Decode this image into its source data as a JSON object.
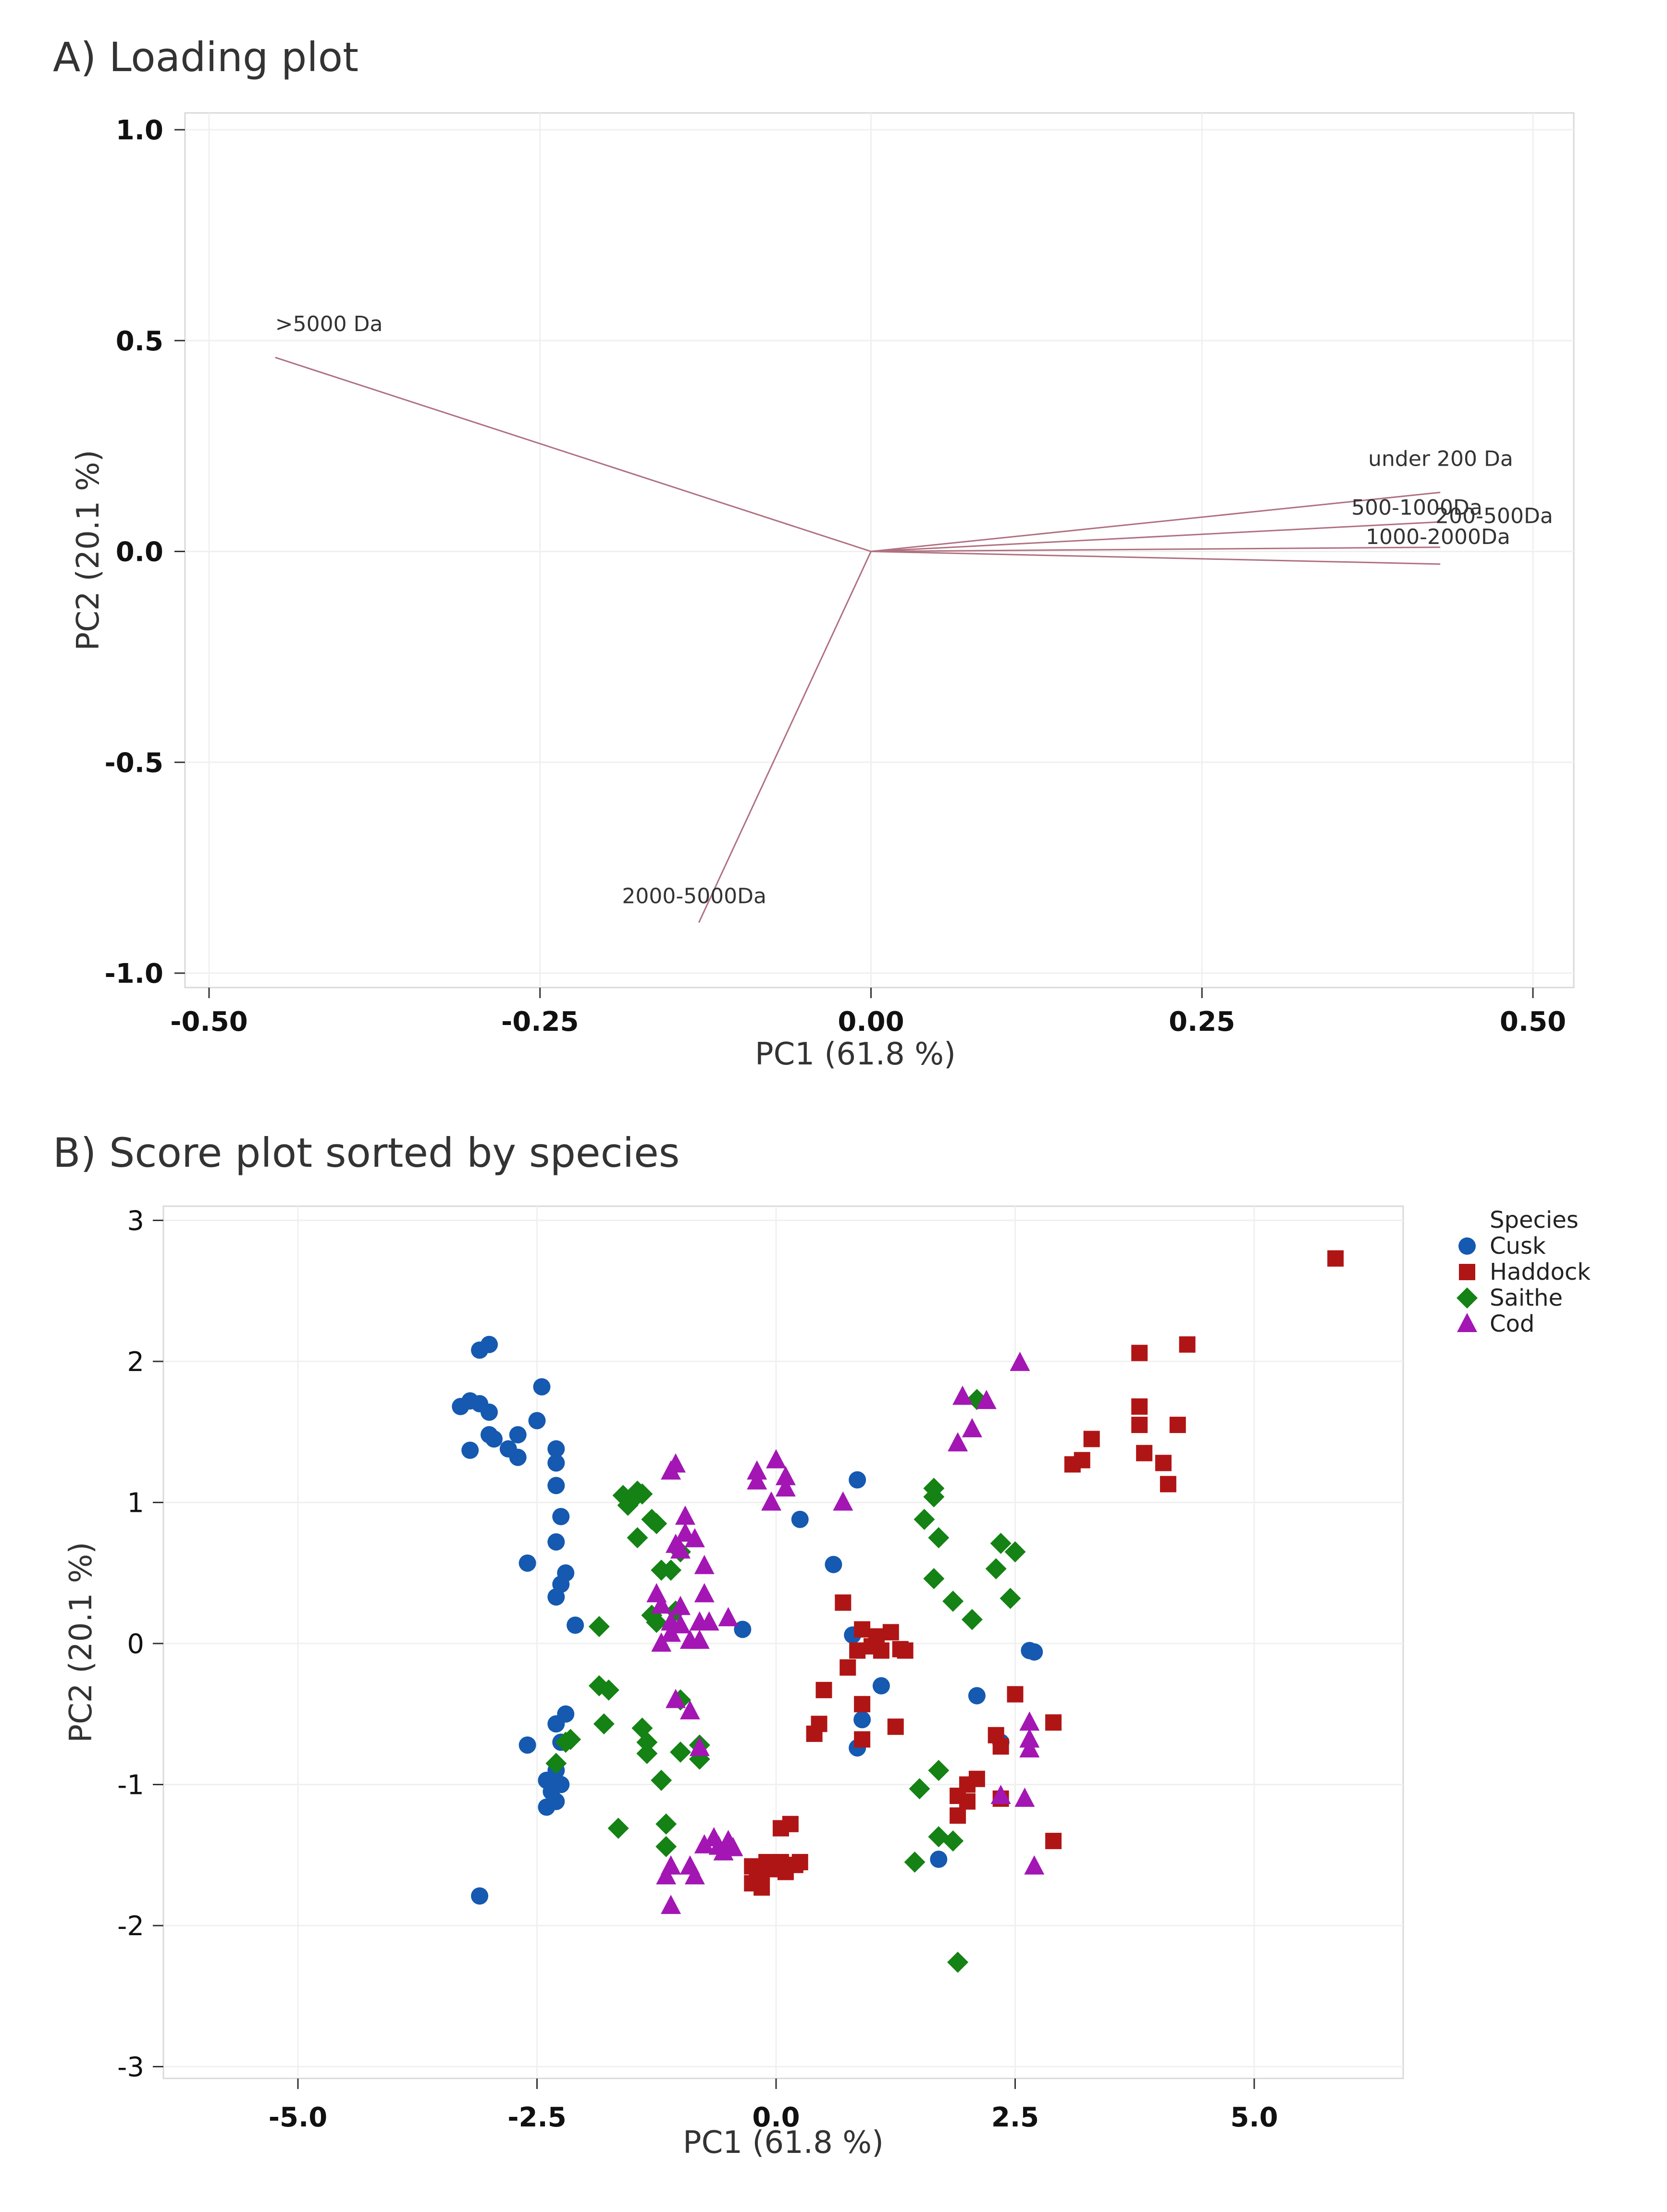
{
  "chart_data": [
    {
      "type": "biplot-loadings",
      "title": "A) Loading plot",
      "xlabel": "PC1 (61.8 %)",
      "ylabel": "PC2 (20.1 %)",
      "xlim": [
        -0.5,
        0.5
      ],
      "ylim": [
        -1.0,
        1.0
      ],
      "xticks": [
        -0.5,
        -0.25,
        0.0,
        0.25,
        0.5
      ],
      "xtick_labels": [
        "-0.50",
        "-0.25",
        "0.00",
        "0.25",
        "0.50"
      ],
      "yticks": [
        1.0,
        0.5,
        0.0,
        -0.5,
        -1.0
      ],
      "ytick_labels": [
        "1.0",
        "0.5",
        "0.0",
        "-0.5",
        "-1.0"
      ],
      "grid": true,
      "vector_color": "#b07080",
      "loadings": [
        {
          "name": ">5000 Da",
          "x": -0.45,
          "y": 0.46
        },
        {
          "name": "under 200 Da",
          "x": 0.43,
          "y": 0.14
        },
        {
          "name": "500-1000Da",
          "x": 0.43,
          "y": 0.07
        },
        {
          "name": "200-500Da",
          "x": 0.43,
          "y": 0.01
        },
        {
          "name": "1000-2000Da",
          "x": 0.43,
          "y": -0.03
        },
        {
          "name": "2000-5000Da",
          "x": -0.13,
          "y": -0.88
        }
      ]
    },
    {
      "type": "scatter",
      "title": "B) Score plot sorted by species",
      "xlabel": "PC1 (61.8 %)",
      "ylabel": "PC2 (20.1 %)",
      "xlim": [
        -6.3,
        6.7
      ],
      "ylim": [
        -3.1,
        3.1
      ],
      "xticks": [
        -5,
        -2.5,
        0,
        2.5,
        5
      ],
      "xtick_labels": [
        "-5.0",
        "-2.5",
        "0.0",
        "2.5",
        "5.0"
      ],
      "yticks": [
        3,
        2,
        1,
        0,
        -1,
        -2,
        -3
      ],
      "ytick_labels": [
        "3",
        "2",
        "1",
        "0",
        "-1",
        "-2",
        "-3"
      ],
      "grid": true,
      "legend_title": "Species",
      "legend_position": "top-right",
      "series": [
        {
          "name": "Cusk",
          "color": "#1559b0",
          "marker": "circle",
          "points": [
            [
              -3.3,
              1.68
            ],
            [
              -3.2,
              1.72
            ],
            [
              -3.1,
              1.7
            ],
            [
              -3.1,
              2.08
            ],
            [
              -3.0,
              2.12
            ],
            [
              -3.0,
              1.64
            ],
            [
              -3.0,
              1.48
            ],
            [
              -2.95,
              1.45
            ],
            [
              -2.8,
              1.38
            ],
            [
              -2.7,
              1.48
            ],
            [
              -2.7,
              1.32
            ],
            [
              -2.5,
              1.58
            ],
            [
              -2.45,
              1.82
            ],
            [
              -2.3,
              1.38
            ],
            [
              -2.3,
              1.28
            ],
            [
              -2.3,
              1.12
            ],
            [
              -3.2,
              1.37
            ],
            [
              -2.25,
              0.9
            ],
            [
              -2.3,
              0.72
            ],
            [
              -2.6,
              0.57
            ],
            [
              -2.2,
              0.5
            ],
            [
              -2.25,
              0.42
            ],
            [
              -2.3,
              0.33
            ],
            [
              -2.1,
              0.13
            ],
            [
              -0.35,
              0.1
            ],
            [
              0.25,
              0.88
            ],
            [
              0.85,
              1.16
            ],
            [
              0.6,
              0.56
            ],
            [
              0.8,
              0.06
            ],
            [
              1.1,
              -0.3
            ],
            [
              0.9,
              -0.54
            ],
            [
              0.85,
              -0.74
            ],
            [
              2.1,
              -0.37
            ],
            [
              2.35,
              -0.7
            ],
            [
              2.65,
              -0.05
            ],
            [
              2.7,
              -0.06
            ],
            [
              -2.2,
              -0.5
            ],
            [
              -2.3,
              -0.57
            ],
            [
              -2.25,
              -0.7
            ],
            [
              -2.6,
              -0.72
            ],
            [
              -2.4,
              -0.97
            ],
            [
              -2.3,
              -0.9
            ],
            [
              -2.25,
              -1.0
            ],
            [
              -2.35,
              -1.05
            ],
            [
              -2.3,
              -1.12
            ],
            [
              -2.4,
              -1.16
            ],
            [
              -3.1,
              -1.79
            ],
            [
              1.7,
              -1.53
            ]
          ]
        },
        {
          "name": "Haddock",
          "color": "#b01515",
          "marker": "square",
          "points": [
            [
              5.85,
              2.73
            ],
            [
              4.3,
              2.12
            ],
            [
              3.8,
              2.06
            ],
            [
              3.8,
              1.68
            ],
            [
              3.8,
              1.55
            ],
            [
              4.2,
              1.55
            ],
            [
              3.3,
              1.45
            ],
            [
              3.2,
              1.3
            ],
            [
              3.1,
              1.27
            ],
            [
              3.85,
              1.35
            ],
            [
              4.05,
              1.28
            ],
            [
              4.1,
              1.13
            ],
            [
              0.7,
              0.29
            ],
            [
              0.9,
              0.1
            ],
            [
              0.85,
              -0.05
            ],
            [
              1.0,
              -0.02
            ],
            [
              0.75,
              -0.17
            ],
            [
              1.05,
              0.05
            ],
            [
              1.2,
              0.08
            ],
            [
              1.1,
              -0.05
            ],
            [
              1.3,
              -0.04
            ],
            [
              1.35,
              -0.05
            ],
            [
              0.5,
              -0.33
            ],
            [
              0.9,
              -0.43
            ],
            [
              0.45,
              -0.57
            ],
            [
              0.4,
              -0.64
            ],
            [
              0.9,
              -0.68
            ],
            [
              1.25,
              -0.59
            ],
            [
              2.5,
              -0.36
            ],
            [
              2.3,
              -0.65
            ],
            [
              2.35,
              -0.73
            ],
            [
              2.9,
              -0.56
            ],
            [
              2.0,
              -1.0
            ],
            [
              1.9,
              -1.08
            ],
            [
              1.9,
              -1.22
            ],
            [
              2.0,
              -1.12
            ],
            [
              2.1,
              -0.96
            ],
            [
              2.35,
              -1.1
            ],
            [
              2.9,
              -1.4
            ],
            [
              -0.1,
              -1.55
            ],
            [
              -0.15,
              -1.62
            ],
            [
              -0.2,
              -1.65
            ],
            [
              -0.25,
              -1.7
            ],
            [
              -0.25,
              -1.58
            ],
            [
              -0.15,
              -1.73
            ],
            [
              -0.05,
              -1.6
            ],
            [
              0.05,
              -1.55
            ],
            [
              0.1,
              -1.62
            ],
            [
              0.2,
              -1.57
            ],
            [
              0.25,
              -1.55
            ],
            [
              0.15,
              -1.28
            ],
            [
              0.05,
              -1.31
            ]
          ]
        },
        {
          "name": "Saithe",
          "color": "#148214",
          "marker": "diamond",
          "points": [
            [
              -1.6,
              1.05
            ],
            [
              -1.55,
              0.98
            ],
            [
              -1.5,
              1.02
            ],
            [
              -1.45,
              1.08
            ],
            [
              -1.4,
              1.06
            ],
            [
              -1.45,
              0.75
            ],
            [
              -1.3,
              0.88
            ],
            [
              -1.25,
              0.85
            ],
            [
              -1.2,
              0.52
            ],
            [
              -1.1,
              0.52
            ],
            [
              -1.3,
              0.2
            ],
            [
              -1.25,
              0.15
            ],
            [
              -1.05,
              0.23
            ],
            [
              -1.0,
              0.65
            ],
            [
              -1.85,
              0.12
            ],
            [
              -1.85,
              -0.3
            ],
            [
              -1.75,
              -0.33
            ],
            [
              -1.8,
              -0.57
            ],
            [
              -1.4,
              -0.6
            ],
            [
              -1.35,
              -0.7
            ],
            [
              -1.35,
              -0.78
            ],
            [
              -1.2,
              -0.97
            ],
            [
              -1.0,
              -0.77
            ],
            [
              -0.8,
              -0.72
            ],
            [
              -0.8,
              -0.82
            ],
            [
              -1.0,
              -0.4
            ],
            [
              -1.65,
              -1.31
            ],
            [
              -1.15,
              -1.28
            ],
            [
              -1.15,
              -1.44
            ],
            [
              -2.3,
              -0.85
            ],
            [
              -2.2,
              -0.7
            ],
            [
              -2.15,
              -0.68
            ],
            [
              1.65,
              1.1
            ],
            [
              1.65,
              1.04
            ],
            [
              1.55,
              0.88
            ],
            [
              1.7,
              0.75
            ],
            [
              1.65,
              0.46
            ],
            [
              1.85,
              0.3
            ],
            [
              2.05,
              0.17
            ],
            [
              2.1,
              1.73
            ],
            [
              2.3,
              0.53
            ],
            [
              2.35,
              0.71
            ],
            [
              2.5,
              0.65
            ],
            [
              2.45,
              0.32
            ],
            [
              1.7,
              -0.9
            ],
            [
              1.5,
              -1.03
            ],
            [
              1.7,
              -1.37
            ],
            [
              1.85,
              -1.4
            ],
            [
              1.45,
              -1.55
            ],
            [
              1.9,
              -2.26
            ]
          ]
        },
        {
          "name": "Cod",
          "color": "#a316b4",
          "marker": "triangle",
          "points": [
            [
              -1.05,
              1.27
            ],
            [
              -1.1,
              1.22
            ],
            [
              -0.95,
              0.9
            ],
            [
              -1.05,
              0.7
            ],
            [
              -0.95,
              0.78
            ],
            [
              -1.0,
              0.66
            ],
            [
              -0.85,
              0.74
            ],
            [
              -0.75,
              0.55
            ],
            [
              -0.75,
              0.35
            ],
            [
              -0.8,
              0.15
            ],
            [
              -0.8,
              0.02
            ],
            [
              -0.7,
              0.15
            ],
            [
              -0.9,
              0.02
            ],
            [
              -1.0,
              0.13
            ],
            [
              -1.1,
              0.15
            ],
            [
              -1.0,
              0.26
            ],
            [
              -1.25,
              0.35
            ],
            [
              -1.2,
              0.27
            ],
            [
              -1.1,
              0.07
            ],
            [
              -1.2,
              0.0
            ],
            [
              -0.5,
              0.18
            ],
            [
              -0.9,
              -0.48
            ],
            [
              -0.8,
              -0.74
            ],
            [
              -1.05,
              -0.4
            ],
            [
              -0.2,
              1.22
            ],
            [
              -0.2,
              1.15
            ],
            [
              0.0,
              1.3
            ],
            [
              0.1,
              1.18
            ],
            [
              -0.05,
              1.0
            ],
            [
              0.1,
              1.1
            ],
            [
              1.95,
              1.75
            ],
            [
              2.2,
              1.72
            ],
            [
              2.05,
              1.52
            ],
            [
              1.9,
              1.42
            ],
            [
              2.55,
              1.99
            ],
            [
              0.7,
              1.0
            ],
            [
              -0.65,
              -1.38
            ],
            [
              -0.6,
              -1.44
            ],
            [
              -0.5,
              -1.4
            ],
            [
              -0.45,
              -1.45
            ],
            [
              -0.55,
              -1.48
            ],
            [
              -0.75,
              -1.43
            ],
            [
              -1.1,
              -1.58
            ],
            [
              -1.15,
              -1.65
            ],
            [
              -0.9,
              -1.58
            ],
            [
              -0.85,
              -1.65
            ],
            [
              -1.1,
              -1.86
            ],
            [
              2.65,
              -0.56
            ],
            [
              2.65,
              -0.68
            ],
            [
              2.65,
              -0.75
            ],
            [
              2.6,
              -1.1
            ],
            [
              2.35,
              -1.08
            ],
            [
              2.7,
              -1.58
            ]
          ]
        }
      ]
    }
  ]
}
